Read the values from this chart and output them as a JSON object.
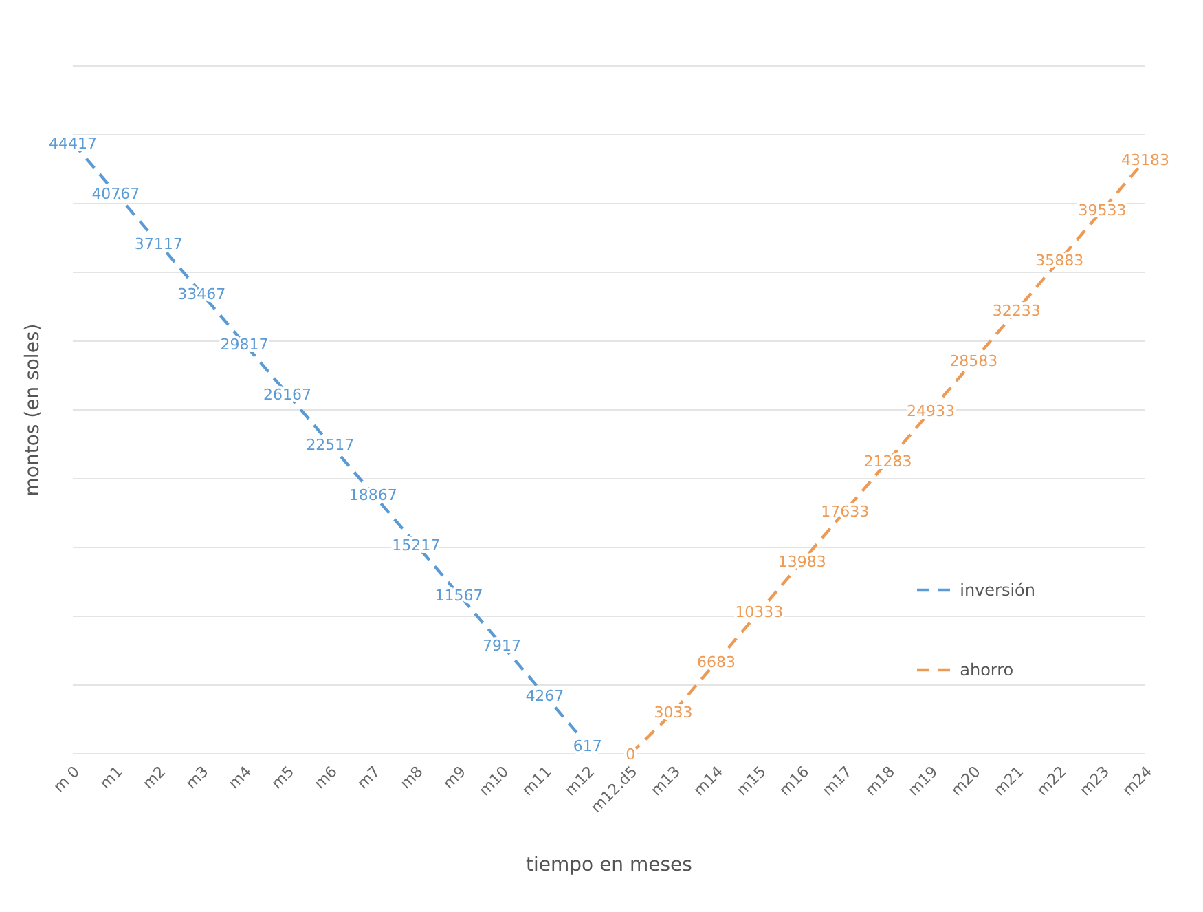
{
  "chart_data": {
    "type": "line",
    "xlabel": "tiempo en meses",
    "ylabel": "montos (en soles)",
    "categories": [
      "m 0",
      "m1",
      "m2",
      "m3",
      "m4",
      "m5",
      "m6",
      "m7",
      "m8",
      "m9",
      "m10",
      "m11",
      "m12",
      "m12.d5",
      "m13",
      "m14",
      "m15",
      "m16",
      "m17",
      "m18",
      "m19",
      "m20",
      "m21",
      "m22",
      "m23",
      "m24"
    ],
    "series": [
      {
        "name": "inversión",
        "color": "#5b9bd5",
        "values": [
          44417,
          40767,
          37117,
          33467,
          29817,
          26167,
          22517,
          18867,
          15217,
          11567,
          7917,
          4267,
          617,
          null,
          null,
          null,
          null,
          null,
          null,
          null,
          null,
          null,
          null,
          null,
          null,
          null
        ]
      },
      {
        "name": "ahorro",
        "color": "#ed9a55",
        "values": [
          null,
          null,
          null,
          null,
          null,
          null,
          null,
          null,
          null,
          null,
          null,
          null,
          null,
          0,
          3033,
          6683,
          10333,
          13983,
          17633,
          21283,
          24933,
          28583,
          32233,
          35883,
          39533,
          43183
        ]
      }
    ],
    "ylim": [
      0,
      50000
    ],
    "yticks": [
      {
        "value": 0,
        "label": null
      },
      {
        "value": 5000,
        "label": null
      },
      {
        "value": 10000,
        "label": null
      },
      {
        "value": 15000,
        "label": null
      },
      {
        "value": 20000,
        "label": null
      },
      {
        "value": 25000,
        "label": null
      },
      {
        "value": 30000,
        "label": null
      },
      {
        "value": 35000,
        "label": null
      },
      {
        "value": 40000,
        "label": null
      },
      {
        "value": 45000,
        "label": null
      },
      {
        "value": 50000,
        "label": null
      }
    ],
    "tick_labels": "x",
    "grid": "y",
    "legend": "bottom right",
    "data_labels": true,
    "marker": "none",
    "line_style": "dashed"
  }
}
